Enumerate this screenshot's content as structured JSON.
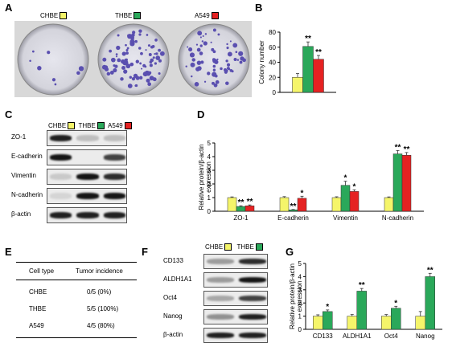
{
  "colors": {
    "CHBE": "#f5f56a",
    "THBE": "#2aa85a",
    "A549": "#e52222",
    "dish_dot": "#5a4fb0"
  },
  "panel_letters": [
    "A",
    "B",
    "C",
    "D",
    "E",
    "F",
    "G"
  ],
  "panelA": {
    "labels": [
      "CHBE",
      "THBE",
      "A549"
    ]
  },
  "panelC": {
    "headers": [
      "CHBE",
      "THBE",
      "A549"
    ],
    "rows": [
      "ZO-1",
      "E-cadherin",
      "Vimentin",
      "N-cadherin",
      "β-actin"
    ]
  },
  "panelE": {
    "headers": [
      "Cell type",
      "Tumor incidence"
    ],
    "rows": [
      [
        "CHBE",
        "0/5 (0%)"
      ],
      [
        "THBE",
        "5/5 (100%)"
      ],
      [
        "A549",
        "4/5 (80%)"
      ]
    ]
  },
  "panelF": {
    "headers": [
      "CHBE",
      "THBE"
    ],
    "rows": [
      "CD133",
      "ALDH1A1",
      "Oct4",
      "Nanog",
      "β-actin"
    ]
  },
  "chart_data": [
    {
      "panel": "B",
      "type": "bar",
      "ylabel": "Colony number",
      "ylim": [
        0,
        80
      ],
      "yticks": [
        0,
        20,
        40,
        60,
        80
      ],
      "categories": [
        ""
      ],
      "series": [
        {
          "name": "CHBE",
          "values": [
            20
          ],
          "err": [
            5
          ]
        },
        {
          "name": "THBE",
          "values": [
            61
          ],
          "err": [
            6
          ]
        },
        {
          "name": "A549",
          "values": [
            44
          ],
          "err": [
            5
          ]
        }
      ],
      "annotations": [
        [
          "",
          "**",
          "**"
        ]
      ]
    },
    {
      "panel": "D",
      "type": "bar",
      "ylabel": "Relative protein/β-actin expression",
      "ylim": [
        0,
        5
      ],
      "yticks": [
        0,
        1,
        2,
        3,
        4,
        5
      ],
      "categories": [
        "ZO-1",
        "E-cadherin",
        "Vimentin",
        "N-cadherin"
      ],
      "series": [
        {
          "name": "CHBE",
          "values": [
            1,
            1,
            1,
            1
          ],
          "err": [
            0.05,
            0.07,
            0.06,
            0.05
          ]
        },
        {
          "name": "THBE",
          "values": [
            0.35,
            0.1,
            1.9,
            4.2
          ],
          "err": [
            0.05,
            0.03,
            0.3,
            0.25
          ]
        },
        {
          "name": "A549",
          "values": [
            0.4,
            0.95,
            1.45,
            4.1
          ],
          "err": [
            0.06,
            0.15,
            0.12,
            0.2
          ]
        }
      ],
      "annotations": [
        [
          "",
          "**",
          "**"
        ],
        [
          "",
          "**",
          "*"
        ],
        [
          "",
          "*",
          "*"
        ],
        [
          "",
          "**",
          "**"
        ]
      ]
    },
    {
      "panel": "G",
      "type": "bar",
      "ylabel": "Relative protein/β-actin expression",
      "ylim": [
        0,
        5
      ],
      "yticks": [
        0,
        1,
        2,
        3,
        4,
        5
      ],
      "categories": [
        "CD133",
        "ALDH1A1",
        "Oct4",
        "Nanog"
      ],
      "series": [
        {
          "name": "CHBE",
          "values": [
            1,
            1,
            1,
            1
          ],
          "err": [
            0.1,
            0.12,
            0.12,
            0.35
          ]
        },
        {
          "name": "THBE",
          "values": [
            1.35,
            2.9,
            1.6,
            4.0
          ],
          "err": [
            0.12,
            0.2,
            0.15,
            0.25
          ]
        }
      ],
      "annotations": [
        [
          "",
          "*"
        ],
        [
          "",
          "**"
        ],
        [
          "",
          "*"
        ],
        [
          "",
          "**"
        ]
      ]
    }
  ]
}
